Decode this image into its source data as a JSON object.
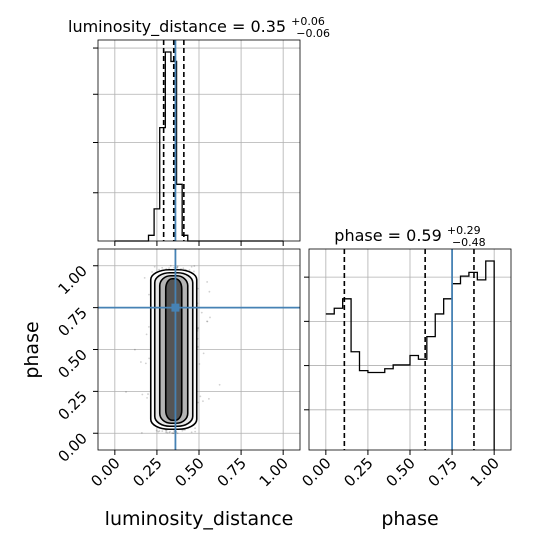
{
  "chart_data": [
    {
      "type": "histogram",
      "panel": "luminosity_distance-marginal",
      "title_prefix": "luminosity_distance = 0.35",
      "title_sup": "+0.06",
      "title_sub": "−0.06",
      "xlim": [
        -0.1,
        1.1
      ],
      "grid": true,
      "bin_edges": [
        0.0,
        0.0333,
        0.0667,
        0.1,
        0.1333,
        0.1667,
        0.2,
        0.2333,
        0.2667,
        0.3,
        0.3333,
        0.3667,
        0.4,
        0.4333,
        0.4667,
        0.5,
        0.5333,
        0.5667,
        0.6,
        0.6333,
        0.6667,
        0.7,
        0.7333,
        0.7667,
        0.8,
        0.8333,
        0.8667,
        0.9,
        0.9333,
        0.9667,
        1.0
      ],
      "counts": [
        0,
        0,
        0,
        0,
        0,
        0,
        3,
        17,
        60,
        100,
        95,
        30,
        3,
        0,
        0,
        0,
        0,
        0,
        0,
        0,
        0,
        0,
        0,
        0,
        0,
        0,
        0,
        0,
        0,
        0
      ],
      "quantiles": [
        0.29,
        0.35,
        0.41
      ],
      "truth": 0.36,
      "truth_color": "#4682b4"
    },
    {
      "type": "histogram",
      "panel": "phase-marginal",
      "title_prefix": "phase = 0.59",
      "title_sup": "+0.29",
      "title_sub": "−0.48",
      "xlim": [
        -0.1,
        1.1
      ],
      "xlabel": "phase",
      "xticks": [
        "0.00",
        "0.25",
        "0.50",
        "0.75",
        "1.00"
      ],
      "grid": true,
      "bin_edges": [
        0.0,
        0.05,
        0.1,
        0.15,
        0.2,
        0.25,
        0.3,
        0.35,
        0.4,
        0.45,
        0.5,
        0.55,
        0.6,
        0.65,
        0.7,
        0.75,
        0.8,
        0.85,
        0.9,
        0.95,
        1.0
      ],
      "counts": [
        72,
        75,
        80,
        52,
        42,
        41,
        41,
        43,
        45,
        45,
        50,
        48,
        60,
        72,
        80,
        88,
        92,
        94,
        90,
        100,
        0
      ],
      "quantiles": [
        0.11,
        0.59,
        0.88
      ],
      "truth": 0.75,
      "truth_color": "#4682b4"
    },
    {
      "type": "contour",
      "panel": "luminosity_distance-vs-phase",
      "xlabel": "luminosity_distance",
      "ylabel": "phase",
      "xlim": [
        -0.1,
        1.1
      ],
      "ylim": [
        -0.1,
        1.1
      ],
      "xticks": [
        "0.00",
        "0.25",
        "0.50",
        "0.75",
        "1.00"
      ],
      "yticks": [
        "0.00",
        "0.25",
        "0.50",
        "0.75",
        "1.00"
      ],
      "grid": true,
      "x_center": 0.35,
      "x_sigma": 0.05,
      "y_range": [
        0.0,
        1.0
      ],
      "truth": [
        0.36,
        0.75
      ],
      "truth_color": "#4682b4"
    }
  ]
}
